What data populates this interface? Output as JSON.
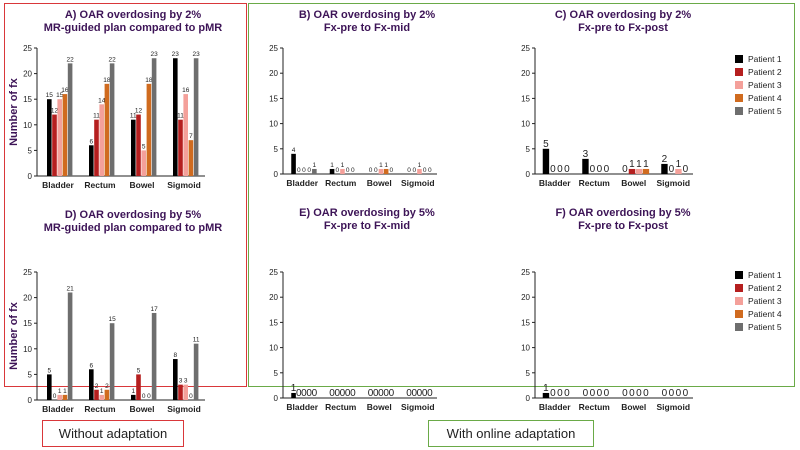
{
  "captions": {
    "without": "Without adaptation",
    "with": "With online adaptation"
  },
  "legend": {
    "entries": [
      "Patient 1",
      "Patient 2",
      "Patient 3",
      "Patient 4",
      "Patient 5"
    ],
    "colors": [
      "#000000",
      "#b51f1f",
      "#f4a09a",
      "#d06b1f",
      "#6e6e6e"
    ]
  },
  "chart_data": [
    {
      "id": "A",
      "type": "bar",
      "title": [
        "A) OAR overdosing by 2%",
        "MR-guided plan compared to pMR"
      ],
      "ylabel": "Number of fx",
      "ylim": [
        0,
        25
      ],
      "yticks": [
        0,
        5,
        10,
        15,
        20,
        25
      ],
      "categories": [
        "Bladder",
        "Rectum",
        "Bowel",
        "Sigmoid"
      ],
      "series": [
        {
          "name": "Patient 1",
          "values": [
            15,
            6,
            11,
            23
          ]
        },
        {
          "name": "Patient 2",
          "values": [
            12,
            11,
            12,
            11
          ]
        },
        {
          "name": "Patient 3",
          "values": [
            15,
            14,
            5,
            16
          ]
        },
        {
          "name": "Patient 4",
          "values": [
            16,
            18,
            18,
            7
          ]
        },
        {
          "name": "Patient 5",
          "values": [
            22,
            22,
            23,
            23
          ]
        }
      ]
    },
    {
      "id": "B",
      "type": "bar",
      "title": [
        "B) OAR overdosing by 2%",
        "Fx-pre to Fx-mid"
      ],
      "ylabel": "",
      "ylim": [
        0,
        25
      ],
      "yticks": [
        0,
        5,
        10,
        15,
        20,
        25
      ],
      "categories": [
        "Bladder",
        "Rectum",
        "Bowel",
        "Sigmoid"
      ],
      "series": [
        {
          "name": "Patient 1",
          "values": [
            4,
            1,
            0,
            0
          ]
        },
        {
          "name": "Patient 2",
          "values": [
            0,
            0,
            0,
            0
          ]
        },
        {
          "name": "Patient 3",
          "values": [
            0,
            1,
            1,
            1
          ]
        },
        {
          "name": "Patient 4",
          "values": [
            0,
            0,
            1,
            0
          ]
        },
        {
          "name": "Patient 5",
          "values": [
            1,
            0,
            0,
            0
          ]
        }
      ]
    },
    {
      "id": "C",
      "type": "bar",
      "title": [
        "C) OAR overdosing by 2%",
        "Fx-pre to Fx-post"
      ],
      "ylabel": "",
      "ylim": [
        0,
        25
      ],
      "yticks": [
        0,
        5,
        10,
        15,
        20,
        25
      ],
      "categories": [
        "Bladder",
        "Rectum",
        "Bowel",
        "Sigmoid"
      ],
      "series": [
        {
          "name": "Patient 1",
          "values": [
            5,
            3,
            0,
            2
          ]
        },
        {
          "name": "Patient 2",
          "values": [
            0,
            0,
            1,
            0
          ]
        },
        {
          "name": "Patient 3",
          "values": [
            0,
            0,
            1,
            1
          ]
        },
        {
          "name": "Patient 4",
          "values": [
            0,
            0,
            1,
            0
          ]
        }
      ]
    },
    {
      "id": "D",
      "type": "bar",
      "title": [
        "D) OAR overdosing by 5%",
        "MR-guided plan compared to pMR"
      ],
      "ylabel": "Number of fx",
      "ylim": [
        0,
        25
      ],
      "yticks": [
        0,
        5,
        10,
        15,
        20,
        25
      ],
      "categories": [
        "Bladder",
        "Rectum",
        "Bowel",
        "Sigmoid"
      ],
      "series": [
        {
          "name": "Patient 1",
          "values": [
            5,
            6,
            1,
            8
          ]
        },
        {
          "name": "Patient 2",
          "values": [
            0,
            2,
            5,
            3
          ]
        },
        {
          "name": "Patient 3",
          "values": [
            1,
            1,
            0,
            3
          ]
        },
        {
          "name": "Patient 4",
          "values": [
            1,
            2,
            0,
            0
          ]
        },
        {
          "name": "Patient 5",
          "values": [
            21,
            15,
            17,
            11
          ]
        }
      ]
    },
    {
      "id": "E",
      "type": "bar",
      "title": [
        "E) OAR overdosing by 5%",
        "Fx-pre to Fx-mid"
      ],
      "ylabel": "",
      "ylim": [
        0,
        25
      ],
      "yticks": [
        0,
        5,
        10,
        15,
        20,
        25
      ],
      "categories": [
        "Bladder",
        "Rectum",
        "Bowel",
        "Sigmoid"
      ],
      "series": [
        {
          "name": "Patient 1",
          "values": [
            1,
            0,
            0,
            0
          ]
        },
        {
          "name": "Patient 2",
          "values": [
            0,
            0,
            0,
            0
          ]
        },
        {
          "name": "Patient 3",
          "values": [
            0,
            0,
            0,
            0
          ]
        },
        {
          "name": "Patient 4",
          "values": [
            0,
            0,
            0,
            0
          ]
        },
        {
          "name": "Patient 5",
          "values": [
            0,
            0,
            0,
            0
          ]
        }
      ]
    },
    {
      "id": "F",
      "type": "bar",
      "title": [
        "F) OAR overdosing by 5%",
        "Fx-pre to Fx-post"
      ],
      "ylabel": "",
      "ylim": [
        0,
        25
      ],
      "yticks": [
        0,
        5,
        10,
        15,
        20,
        25
      ],
      "categories": [
        "Bladder",
        "Rectum",
        "Bowel",
        "Sigmoid"
      ],
      "series": [
        {
          "name": "Patient 1",
          "values": [
            1,
            0,
            0,
            0
          ]
        },
        {
          "name": "Patient 2",
          "values": [
            0,
            0,
            0,
            0
          ]
        },
        {
          "name": "Patient 3",
          "values": [
            0,
            0,
            0,
            0
          ]
        },
        {
          "name": "Patient 4",
          "values": [
            0,
            0,
            0,
            0
          ]
        }
      ]
    }
  ]
}
